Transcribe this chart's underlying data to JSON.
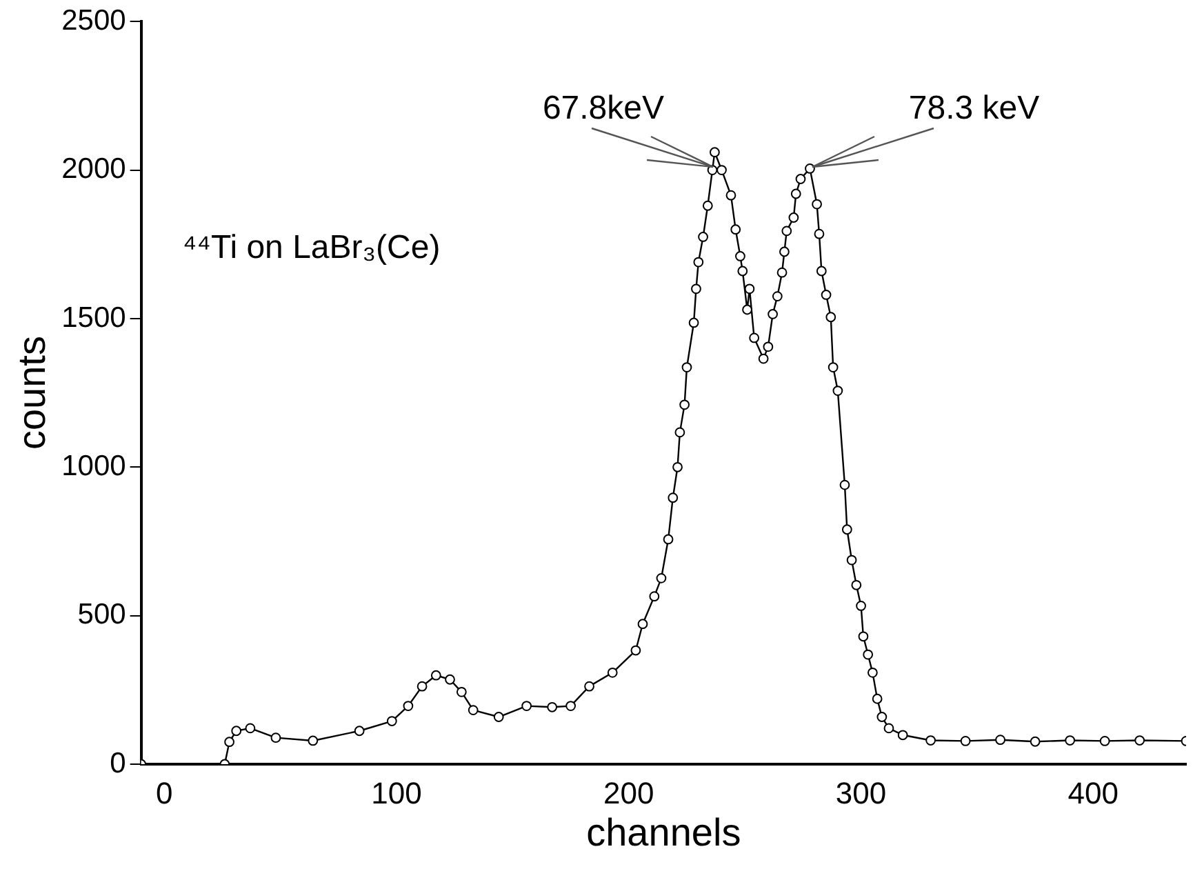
{
  "chart_data": {
    "type": "line",
    "xlabel": "channels",
    "ylabel": "counts",
    "xlim": [
      -10,
      440
    ],
    "xticks": [
      0,
      100,
      200,
      300,
      400
    ],
    "ylim": [
      0,
      2500
    ],
    "yticks": [
      0,
      500,
      1000,
      1500,
      2000,
      2500
    ],
    "grid": false,
    "legend": false,
    "marker": "circle",
    "line_style": "solid",
    "annotations": [
      {
        "text": "67.8keV",
        "x": 236,
        "y": 2010
      },
      {
        "text": "78.3 keV",
        "x": 279,
        "y": 2010
      },
      "⁴⁴Ti on LaBr₃(Ce)"
    ],
    "series": [
      {
        "color": "#000000",
        "x": [
          -10,
          26,
          28,
          31,
          37,
          48,
          64,
          84,
          98,
          105,
          111,
          117,
          123,
          128,
          133,
          144,
          156,
          167,
          175,
          183,
          193,
          203,
          206,
          211,
          214,
          217,
          219,
          221,
          222,
          224,
          225,
          228,
          229,
          230,
          232,
          234,
          236,
          237,
          240,
          244,
          246,
          248,
          249,
          251,
          252,
          254,
          258,
          260,
          262,
          264,
          266,
          267,
          268,
          271,
          272,
          274,
          278,
          281,
          282,
          283,
          285,
          287,
          288,
          290,
          293,
          294,
          296,
          298,
          300,
          301,
          303,
          305,
          307,
          309,
          312,
          318,
          330,
          345,
          360,
          375,
          390,
          405,
          420,
          440
        ],
        "values": [
          0,
          0,
          75,
          112,
          121,
          89,
          79,
          112,
          145,
          196,
          262,
          299,
          285,
          243,
          182,
          159,
          196,
          192,
          196,
          262,
          308,
          383,
          472,
          565,
          626,
          757,
          897,
          1000,
          1117,
          1210,
          1336,
          1486,
          1600,
          1690,
          1775,
          1880,
          2000,
          2060,
          2000,
          1915,
          1800,
          1710,
          1660,
          1530,
          1600,
          1435,
          1365,
          1405,
          1515,
          1575,
          1655,
          1725,
          1795,
          1840,
          1920,
          1970,
          2005,
          1885,
          1785,
          1660,
          1580,
          1505,
          1336,
          1257,
          940,
          790,
          687,
          603,
          533,
          430,
          369,
          308,
          220,
          159,
          121,
          98,
          80,
          78,
          82,
          76,
          80,
          78,
          80,
          78
        ]
      }
    ]
  }
}
